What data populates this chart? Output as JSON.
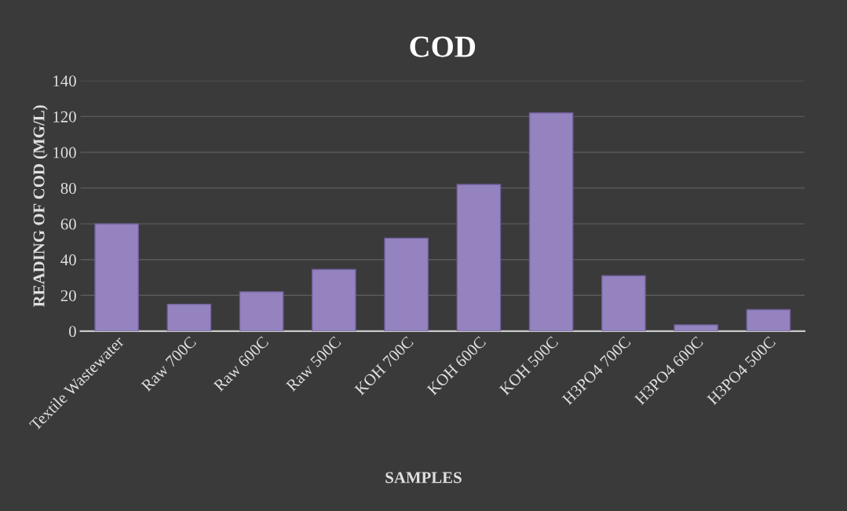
{
  "chart_data": {
    "type": "bar",
    "title": "COD",
    "xlabel": "SAMPLES",
    "ylabel": "READING OF COD (MG/L)",
    "categories": [
      "Textile Wastewater",
      "Raw 700C",
      "Raw 600C",
      "Raw 500C",
      "KOH 700C",
      "KOH 600C",
      "KOH 500C",
      "H3PO4 700C",
      "H3PO4 600C",
      "H3PO4 500C"
    ],
    "values": [
      60,
      15,
      22,
      34.5,
      52,
      82,
      122,
      31,
      3.5,
      12
    ],
    "color": "#9583c0",
    "ylim": [
      0,
      140
    ],
    "yticks": [
      0,
      20,
      40,
      60,
      80,
      100,
      120,
      140
    ],
    "grid": "y"
  }
}
